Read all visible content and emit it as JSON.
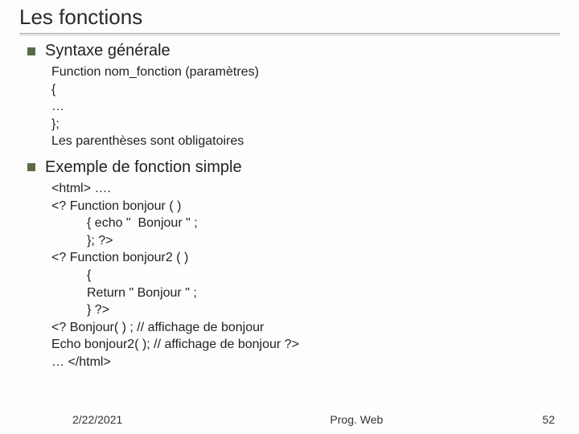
{
  "title": "Les fonctions",
  "sections": [
    {
      "heading": "Syntaxe générale",
      "lines": [
        {
          "t": "Function nom_fonction (paramètres)",
          "indent": false
        },
        {
          "t": "{",
          "indent": false
        },
        {
          "t": "…",
          "indent": false
        },
        {
          "t": "};",
          "indent": false
        },
        {
          "t": "Les parenthèses sont obligatoires",
          "indent": false
        }
      ]
    },
    {
      "heading": "Exemple de fonction simple",
      "lines": [
        {
          "t": "<html> ….",
          "indent": false
        },
        {
          "t": "<? Function bonjour ( )",
          "indent": false
        },
        {
          "t": "{ echo \"  Bonjour \" ;",
          "indent": true
        },
        {
          "t": "}; ?>",
          "indent": true
        },
        {
          "t": "<? Function bonjour2 ( )",
          "indent": false
        },
        {
          "t": "{",
          "indent": true
        },
        {
          "t": "Return \" Bonjour \" ;",
          "indent": true
        },
        {
          "t": "} ?>",
          "indent": true
        },
        {
          "t": "<? Bonjour( ) ; // affichage de bonjour",
          "indent": false
        },
        {
          "t": "Echo bonjour2( ); // affichage de bonjour ?>",
          "indent": false
        },
        {
          "t": "… </html>",
          "indent": false
        }
      ]
    }
  ],
  "footer": {
    "date": "2/22/2021",
    "center": "Prog. Web",
    "page": "52"
  },
  "colors": {
    "bullet": "#5a6b4a",
    "title": "#2a2a2a",
    "text": "#222222",
    "rule1": "#9aa0a6",
    "rule2": "#c0c4c8",
    "background": "#fdfdfd"
  }
}
